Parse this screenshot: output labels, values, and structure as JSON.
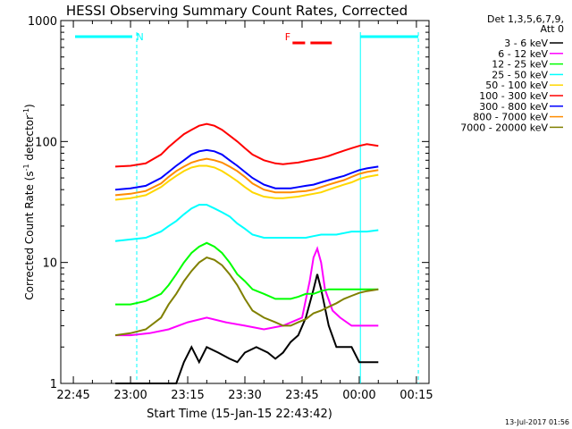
{
  "chart_data": {
    "type": "line",
    "title": "HESSI Observing Summary Count Rates, Corrected",
    "xlabel": "Start Time (15-Jan-15 22:43:42)",
    "ylabel": "Corrected Count Rate (s⁻¹ detector⁻¹)",
    "ylabel_parts": {
      "main": "Corrected Count Rate (s",
      "exp1": "-1",
      "mid": " detector",
      "exp2": "-1",
      "end": ")"
    },
    "y_scale": "log",
    "ylim": [
      1,
      1000
    ],
    "xlim_minutes": [
      -18.3,
      78.3
    ],
    "x_ticks": [
      {
        "label": "22:45",
        "min": -15
      },
      {
        "label": "23:00",
        "min": 0
      },
      {
        "label": "23:15",
        "min": 15
      },
      {
        "label": "23:30",
        "min": 30
      },
      {
        "label": "23:45",
        "min": 45
      },
      {
        "label": "00:00",
        "min": 60
      },
      {
        "label": "00:15",
        "min": 75
      }
    ],
    "y_ticks": [
      {
        "label": "1",
        "value": 1
      },
      {
        "label": "10",
        "value": 10
      },
      {
        "label": "100",
        "value": 100
      },
      {
        "label": "1000",
        "value": 1000
      }
    ],
    "legend": {
      "placement": "top-right",
      "header": [
        "Det 1,3,5,6,7,9,",
        "Att 0"
      ]
    },
    "series": [
      {
        "name": "3 - 6 keV",
        "color": "#000000",
        "x": [
          -4,
          4,
          5,
          8,
          10,
          12,
          14,
          16,
          18,
          20,
          23,
          26,
          28,
          30,
          33,
          36,
          38,
          40,
          42,
          44,
          46,
          48,
          49,
          50,
          52,
          54,
          56,
          58,
          60,
          62,
          65
        ],
        "y": [
          1,
          1,
          1,
          1,
          1,
          1,
          1.5,
          2,
          1.5,
          2,
          1.8,
          1.6,
          1.5,
          1.8,
          2,
          1.8,
          1.6,
          1.8,
          2.2,
          2.5,
          3.5,
          6,
          8,
          6,
          3,
          2,
          2,
          2,
          1.5,
          1.5,
          1.5
        ]
      },
      {
        "name": "6 - 12 keV",
        "color": "#ff00ff",
        "x": [
          -4,
          0,
          5,
          10,
          15,
          20,
          25,
          30,
          35,
          40,
          45,
          47,
          48,
          49,
          50,
          51,
          53,
          55,
          58,
          60,
          62,
          65
        ],
        "y": [
          2.5,
          2.5,
          2.6,
          2.8,
          3.2,
          3.5,
          3.2,
          3,
          2.8,
          3,
          3.5,
          7,
          11,
          13,
          10,
          6,
          4,
          3.5,
          3,
          3,
          3,
          3
        ]
      },
      {
        "name": "12 - 25 keV",
        "color": "#00ff00",
        "x": [
          -4,
          0,
          4,
          8,
          10,
          12,
          14,
          16,
          18,
          20,
          22,
          24,
          26,
          28,
          30,
          32,
          35,
          38,
          40,
          42,
          44,
          46,
          48,
          50,
          52,
          54,
          56,
          58,
          60,
          62,
          65
        ],
        "y": [
          4.5,
          4.5,
          4.8,
          5.5,
          6.5,
          8,
          10,
          12,
          13.5,
          14.5,
          13.5,
          12,
          10,
          8,
          7,
          6,
          5.5,
          5,
          5,
          5,
          5.2,
          5.5,
          5.5,
          5.8,
          6,
          6,
          6,
          6,
          6,
          6,
          6
        ]
      },
      {
        "name": "25 - 50 keV",
        "color": "#00ffff",
        "x": [
          -4,
          0,
          4,
          8,
          10,
          12,
          14,
          16,
          18,
          20,
          22,
          24,
          26,
          28,
          30,
          32,
          35,
          38,
          40,
          42,
          44,
          46,
          48,
          50,
          52,
          54,
          56,
          58,
          60,
          62,
          65
        ],
        "y": [
          15,
          15.5,
          16,
          18,
          20,
          22,
          25,
          28,
          30,
          30,
          28,
          26,
          24,
          21,
          19,
          17,
          16,
          16,
          16,
          16,
          16,
          16,
          16.5,
          17,
          17,
          17,
          17.5,
          18,
          18,
          18,
          18.5
        ]
      },
      {
        "name": "50 - 100 keV",
        "color": "#ffd700",
        "x": [
          -4,
          0,
          4,
          8,
          10,
          12,
          14,
          16,
          18,
          20,
          22,
          24,
          26,
          28,
          30,
          32,
          35,
          38,
          40,
          42,
          44,
          46,
          48,
          50,
          52,
          54,
          56,
          58,
          60,
          62,
          65
        ],
        "y": [
          33,
          34,
          36,
          42,
          47,
          52,
          57,
          61,
          63,
          63,
          61,
          57,
          52,
          47,
          42,
          38,
          35,
          34,
          34,
          34.5,
          35,
          36,
          37,
          38,
          40,
          42,
          44,
          46,
          49,
          51,
          53
        ]
      },
      {
        "name": "100 - 300 keV",
        "color": "#ff0000",
        "x": [
          -4,
          0,
          4,
          8,
          10,
          12,
          14,
          16,
          18,
          20,
          22,
          24,
          26,
          28,
          30,
          32,
          35,
          38,
          40,
          42,
          44,
          46,
          48,
          50,
          52,
          54,
          56,
          58,
          60,
          62,
          65
        ],
        "y": [
          62,
          63,
          66,
          78,
          90,
          102,
          115,
          125,
          135,
          140,
          135,
          125,
          112,
          100,
          88,
          78,
          70,
          66,
          65,
          66,
          67,
          69,
          71,
          73,
          76,
          80,
          84,
          88,
          92,
          95,
          92
        ]
      },
      {
        "name": "300 - 800 keV",
        "color": "#0000ff",
        "x": [
          -4,
          0,
          4,
          8,
          10,
          12,
          14,
          16,
          18,
          20,
          22,
          24,
          26,
          28,
          30,
          32,
          35,
          38,
          40,
          42,
          44,
          46,
          48,
          50,
          52,
          54,
          56,
          58,
          60,
          62,
          65
        ],
        "y": [
          40,
          41,
          43,
          50,
          56,
          63,
          70,
          78,
          83,
          85,
          83,
          78,
          70,
          63,
          56,
          50,
          44,
          41,
          41,
          41,
          42,
          43,
          44,
          46,
          48,
          50,
          52,
          55,
          58,
          60,
          62
        ]
      },
      {
        "name": "800 - 7000 keV",
        "color": "#ff8c00",
        "x": [
          -4,
          0,
          4,
          8,
          10,
          12,
          14,
          16,
          18,
          20,
          22,
          24,
          26,
          28,
          30,
          32,
          35,
          38,
          40,
          42,
          44,
          46,
          48,
          50,
          52,
          54,
          56,
          58,
          60,
          62,
          65
        ],
        "y": [
          36,
          37,
          39,
          45,
          51,
          57,
          62,
          67,
          70,
          72,
          70,
          67,
          62,
          57,
          51,
          45,
          40,
          38,
          38,
          38,
          38.5,
          39,
          40,
          42,
          44,
          46,
          48,
          51,
          54,
          56,
          58
        ]
      },
      {
        "name": "7000 - 20000 keV",
        "color": "#808000",
        "x": [
          -4,
          0,
          4,
          8,
          10,
          12,
          14,
          16,
          18,
          20,
          22,
          24,
          26,
          28,
          30,
          32,
          35,
          38,
          40,
          42,
          44,
          46,
          48,
          50,
          52,
          54,
          56,
          58,
          60,
          62,
          65
        ],
        "y": [
          2.5,
          2.6,
          2.8,
          3.5,
          4.5,
          5.5,
          7,
          8.5,
          10,
          11,
          10.5,
          9.5,
          8,
          6.5,
          5,
          4,
          3.5,
          3.2,
          3,
          3,
          3.2,
          3.4,
          3.8,
          4,
          4.3,
          4.6,
          5,
          5.3,
          5.6,
          5.8,
          6
        ]
      }
    ],
    "annotations": [
      {
        "label": "N",
        "color": "#00ffff",
        "x_min": 1.5
      },
      {
        "label": "F",
        "color": "#ff0000",
        "x_min": 40.5
      }
    ],
    "night_marker_color": "#00ffff",
    "flare_marker_color": "#ff0000",
    "footer_timestamp": "13-Jul-2017 01:56"
  }
}
